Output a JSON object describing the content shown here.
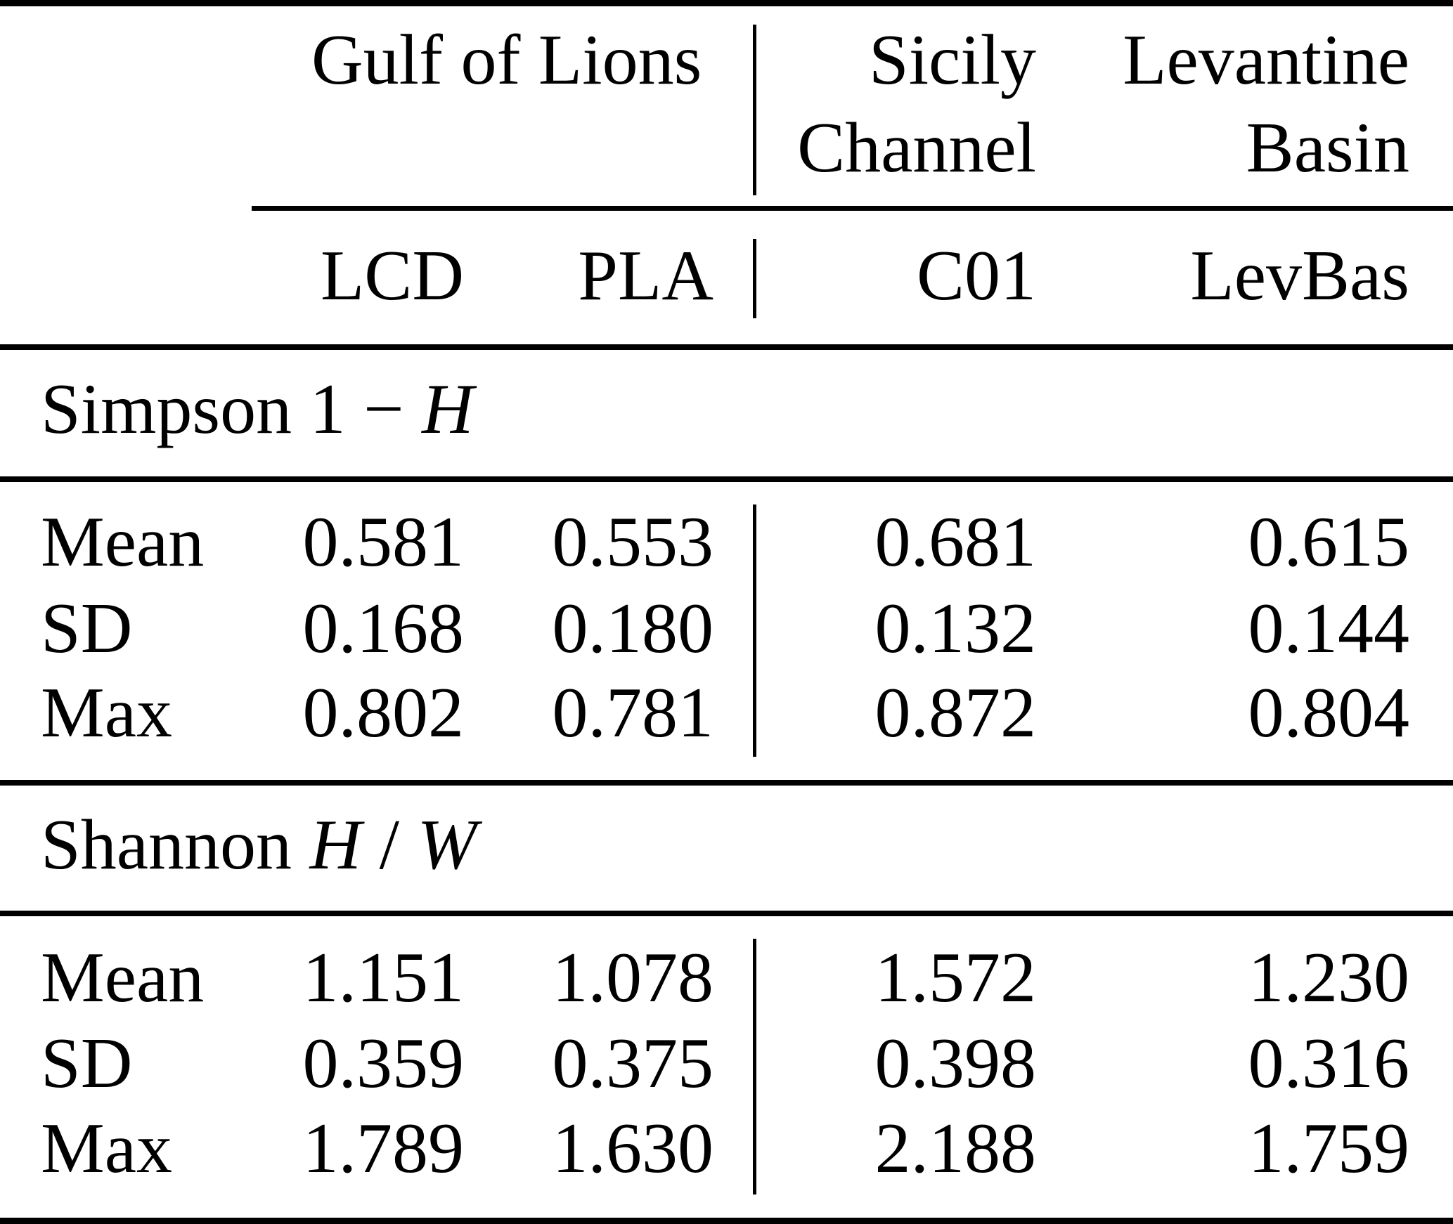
{
  "table": {
    "description_colors": {
      "background": "#ffffff",
      "text": "#000000",
      "rule": "#000000"
    },
    "header": {
      "region_groups": [
        {
          "name": "Gulf of Lions",
          "lines": [
            "Gulf of Lions"
          ]
        },
        {
          "name": "Sicily Channel",
          "lines": [
            "Sicily",
            "Channel"
          ]
        },
        {
          "name": "Levantine Basin",
          "lines": [
            "Levantine",
            "Basin"
          ]
        }
      ],
      "station_columns": [
        "LCD",
        "PLA",
        "C01",
        "LevBas"
      ]
    },
    "sections": [
      {
        "title": {
          "full_text": "Simpson 1 − H",
          "name_part": "Simpson 1 − ",
          "symbol_italic": "H"
        },
        "rows": [
          {
            "label": "Mean",
            "values": [
              "0.581",
              "0.553",
              "0.681",
              "0.615"
            ]
          },
          {
            "label": "SD",
            "values": [
              "0.168",
              "0.180",
              "0.132",
              "0.144"
            ]
          },
          {
            "label": "Max",
            "values": [
              "0.802",
              "0.781",
              "0.872",
              "0.804"
            ]
          }
        ]
      },
      {
        "title": {
          "full_text": "Shannon H / W",
          "name_part": "Shannon ",
          "symbol_italic": "H",
          "separator": " / ",
          "symbol2_italic": "W"
        },
        "rows": [
          {
            "label": "Mean",
            "values": [
              "1.151",
              "1.078",
              "1.572",
              "1.230"
            ]
          },
          {
            "label": "SD",
            "values": [
              "0.359",
              "0.375",
              "0.398",
              "0.316"
            ]
          },
          {
            "label": "Max",
            "values": [
              "1.789",
              "1.630",
              "2.188",
              "1.759"
            ]
          }
        ]
      }
    ]
  }
}
